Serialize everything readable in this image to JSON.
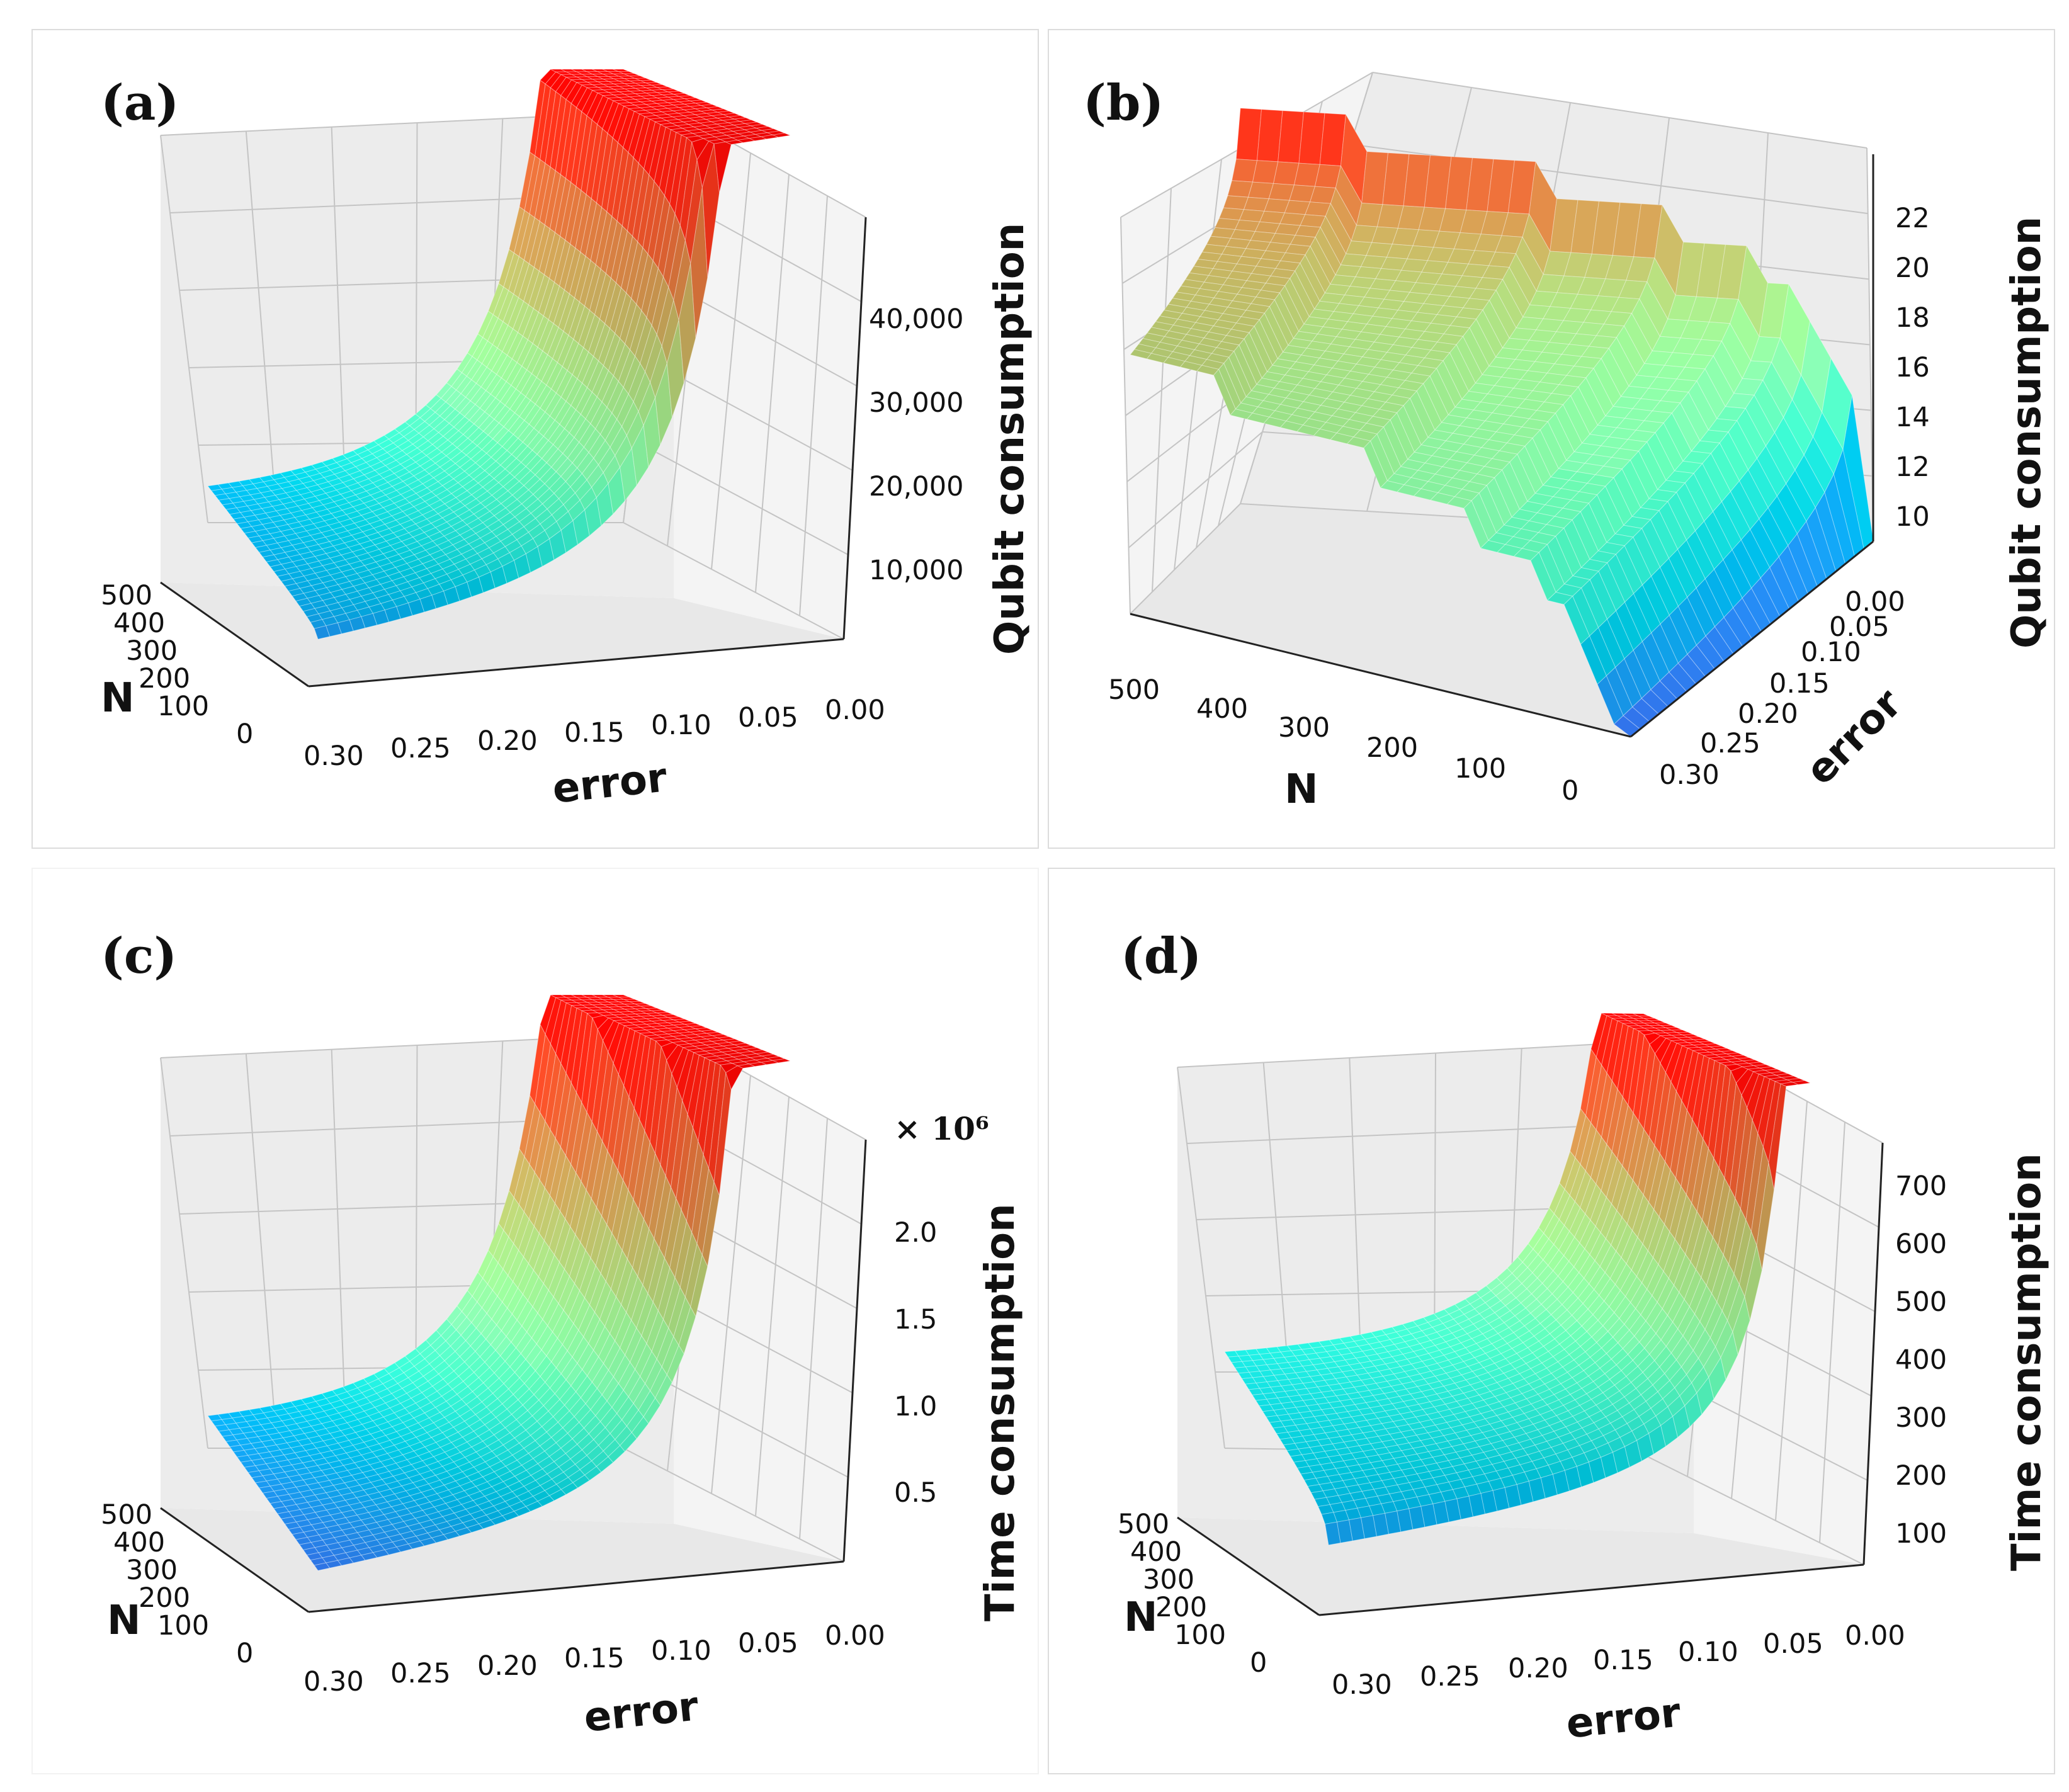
{
  "colors": {
    "pane_back": "#ececec",
    "pane_side": "#f4f4f4",
    "pane_floor": "#e8e8e8",
    "grid": "#c4c4c4",
    "axis": "#222222",
    "colormap": "rainbow"
  },
  "panels": [
    {
      "id": "a",
      "label": "(a)",
      "view": "near-corner",
      "z_label": "Qubit consumption",
      "z_ticks": [
        "10,000",
        "20,000",
        "30,000",
        "40,000"
      ],
      "z_multiplier": "",
      "x_label": "error",
      "x_ticks": [
        "0.30",
        "0.25",
        "0.20",
        "0.15",
        "0.10",
        "0.05",
        "0.00"
      ],
      "y_label": "N",
      "y_ticks": [
        "500",
        "400",
        "300",
        "200",
        "100",
        "0"
      ],
      "chart_data": {
        "type": "surface",
        "title": "(a)",
        "x": "error",
        "x_range": [
          0.0,
          0.3
        ],
        "y": "N",
        "y_range": [
          0,
          500
        ],
        "z": "Qubit consumption",
        "z_max_approx": 48000,
        "shape": "flat near zero, sharp rise as error approaches 0"
      }
    },
    {
      "id": "b",
      "label": "(b)",
      "view": "far-corner",
      "z_label": "Qubit consumption",
      "z_ticks": [
        "10",
        "12",
        "14",
        "16",
        "18",
        "20",
        "22"
      ],
      "z_multiplier": "",
      "x_label": "error",
      "x_ticks": [
        "0.00",
        "0.05",
        "0.10",
        "0.15",
        "0.20",
        "0.25",
        "0.30"
      ],
      "y_label": "N",
      "y_ticks": [
        "500",
        "400",
        "300",
        "200",
        "100",
        "0"
      ],
      "chart_data": {
        "type": "surface",
        "title": "(b)",
        "x": "error",
        "x_range": [
          0.0,
          0.3
        ],
        "y": "N",
        "y_range": [
          0,
          500
        ],
        "z": "Qubit consumption",
        "z_range": [
          9,
          24
        ],
        "shape": "logarithmic growth in N, stepped, higher for small error"
      }
    },
    {
      "id": "c",
      "label": "(c)",
      "view": "near-corner",
      "z_label": "Time consumption",
      "z_ticks": [
        "0.5",
        "1.0",
        "1.5",
        "2.0"
      ],
      "z_multiplier": "× 10⁶",
      "x_label": "error",
      "x_ticks": [
        "0.30",
        "0.25",
        "0.20",
        "0.15",
        "0.10",
        "0.05",
        "0.00"
      ],
      "y_label": "N",
      "y_ticks": [
        "500",
        "400",
        "300",
        "200",
        "100",
        "0"
      ],
      "chart_data": {
        "type": "surface",
        "title": "(c)",
        "x": "error",
        "x_range": [
          0.0,
          0.3
        ],
        "y": "N",
        "y_range": [
          0,
          500
        ],
        "z": "Time consumption",
        "z_max_approx": 2500000,
        "shape": "flat near zero, sharp rise as error approaches 0"
      }
    },
    {
      "id": "d",
      "label": "(d)",
      "view": "near-corner",
      "z_label": "Time consumption",
      "z_ticks": [
        "100",
        "200",
        "300",
        "400",
        "500",
        "600",
        "700"
      ],
      "z_multiplier": "",
      "x_label": "error",
      "x_ticks": [
        "0.30",
        "0.25",
        "0.20",
        "0.15",
        "0.10",
        "0.05",
        "0.00"
      ],
      "y_label": "N",
      "y_ticks": [
        "500",
        "400",
        "300",
        "200",
        "100",
        "0"
      ],
      "chart_data": {
        "type": "surface",
        "title": "(d)",
        "x": "error",
        "x_range": [
          0.0,
          0.3
        ],
        "y": "N",
        "y_range": [
          0,
          500
        ],
        "z": "Time consumption",
        "z_range": [
          50,
          790
        ],
        "shape": "gentle rise with N, strong rise as error approaches 0"
      }
    }
  ]
}
